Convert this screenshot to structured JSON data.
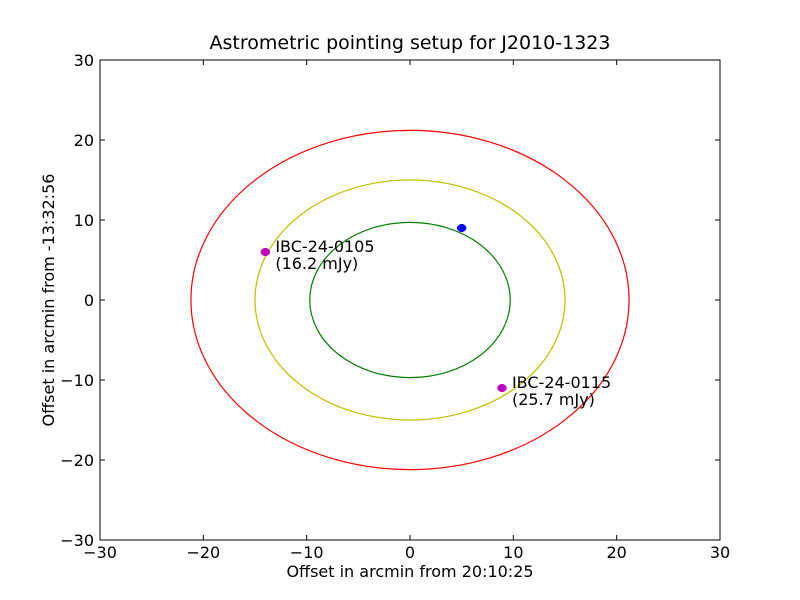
{
  "chart_data": {
    "type": "scatter",
    "title": "Astrometric pointing setup for J2010-1323",
    "xlabel": "Offset in arcmin from 20:10:25",
    "ylabel": "Offset in arcmin from -13:32:56",
    "xlim": [
      -30,
      30
    ],
    "ylim": [
      -30,
      30
    ],
    "xticks": [
      -30,
      -20,
      -10,
      0,
      10,
      20,
      30
    ],
    "yticks": [
      -30,
      -20,
      -10,
      0,
      10,
      20,
      30
    ],
    "xtick_labels": [
      "−30",
      "−20",
      "−10",
      "0",
      "10",
      "20",
      "30"
    ],
    "ytick_labels": [
      "−30",
      "−20",
      "−10",
      "0",
      "10",
      "20",
      "30"
    ],
    "grid": false,
    "circles": [
      {
        "radius": 9.7,
        "color": "#008000"
      },
      {
        "radius": 15.0,
        "color": "#bfbf00"
      },
      {
        "radius": 21.2,
        "color": "#ff0000"
      }
    ],
    "points": [
      {
        "x": 5.0,
        "y": 9.0,
        "color": "#0000ff",
        "label": ""
      },
      {
        "x": -14.0,
        "y": 6.0,
        "color": "#bf00bf",
        "label": "IBC-24-0105",
        "sublabel": "(16.2 mJy)"
      },
      {
        "x": 8.9,
        "y": -11.0,
        "color": "#bf00bf",
        "label": "IBC-24-0115",
        "sublabel": "(25.7 mJy)"
      }
    ]
  }
}
